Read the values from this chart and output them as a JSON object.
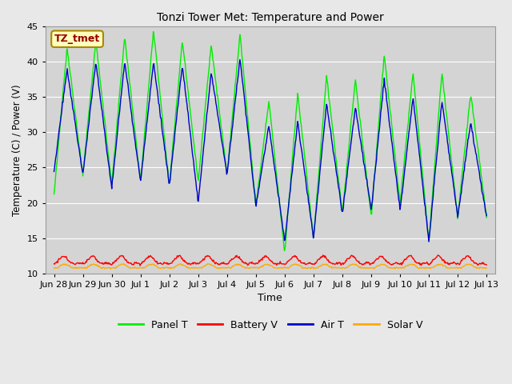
{
  "title": "Tonzi Tower Met: Temperature and Power",
  "xlabel": "Time",
  "ylabel": "Temperature (C) / Power (V)",
  "ylim": [
    10,
    45
  ],
  "annotation": "TZ_tmet",
  "bg_color": "#e8e8e8",
  "plot_bg_color": "#d4d4d4",
  "grid_color": "#ffffff",
  "colors": {
    "panel_t": "#00ee00",
    "battery_v": "#ff0000",
    "air_t": "#0000cc",
    "solar_v": "#ffaa00"
  },
  "xtick_labels": [
    "Jun 28",
    "Jun 29",
    "Jun 30",
    "Jul 1",
    "Jul 2",
    "Jul 3",
    "Jul 4",
    "Jul 5",
    "Jul 6",
    "Jul 7",
    "Jul 8",
    "Jul 9",
    "Jul 10",
    "Jul 11",
    "Jul 12",
    "Jul 13"
  ],
  "xtick_positions": [
    0,
    1,
    2,
    3,
    4,
    5,
    6,
    7,
    8,
    9,
    10,
    11,
    12,
    13,
    14,
    15
  ],
  "ytick_positions": [
    10,
    15,
    20,
    25,
    30,
    35,
    40,
    45
  ],
  "panel_peaks": [
    42,
    43,
    43.5,
    44.5,
    43,
    42.5,
    44,
    34.5,
    35.5,
    38,
    37.5,
    41,
    38.5,
    38.5,
    35.5
  ],
  "panel_troughs": [
    21,
    24,
    22.5,
    23,
    22.5,
    23,
    24,
    19.5,
    13,
    15,
    18.5,
    18,
    20,
    14.5,
    18
  ],
  "air_peaks": [
    39,
    40,
    40,
    40,
    39.5,
    38.5,
    40.5,
    31,
    31.5,
    34,
    33.5,
    37.5,
    35,
    34.5,
    31.5
  ],
  "air_troughs": [
    24.5,
    24,
    22,
    23,
    22.5,
    20,
    24,
    19.5,
    14.5,
    15,
    18.5,
    19,
    19,
    14.5,
    18
  ]
}
